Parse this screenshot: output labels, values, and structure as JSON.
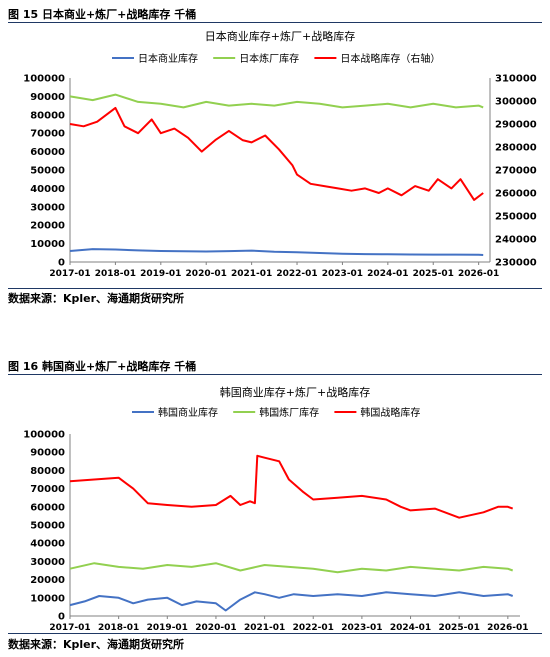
{
  "figures": [
    {
      "label": "图 15 日本商业+炼厂+战略库存 千桶",
      "source": "数据来源：Kpler、海通期货研究所"
    },
    {
      "label": "图 16 韩国商业+炼厂+战略库存 千桶",
      "source": "数据来源：Kpler、海通期货研究所"
    }
  ],
  "chart_data": [
    {
      "type": "line",
      "title": "日本商业库存+炼厂+战略库存",
      "x_ticks": [
        "2017-01",
        "2018-01",
        "2019-01",
        "2020-01",
        "2021-01",
        "2022-01",
        "2023-01",
        "2024-01",
        "2025-01",
        "2026-01"
      ],
      "ylim_left": [
        0,
        100000
      ],
      "yticks_left": [
        0,
        10000,
        20000,
        30000,
        40000,
        50000,
        60000,
        70000,
        80000,
        90000,
        100000
      ],
      "ylim_right": [
        230000,
        310000
      ],
      "yticks_right": [
        230000,
        240000,
        250000,
        260000,
        270000,
        280000,
        290000,
        300000,
        310000
      ],
      "legend_position": "top",
      "grid": false,
      "series": [
        {
          "name": "日本商业库存",
          "axis": "left",
          "color": "#4472c4",
          "x": [
            2017.0,
            2017.5,
            2018.0,
            2018.5,
            2019.0,
            2019.5,
            2020.0,
            2020.5,
            2021.0,
            2021.5,
            2022.0,
            2022.5,
            2023.0,
            2023.5,
            2024.0,
            2024.5,
            2025.0,
            2025.5,
            2026.0,
            2026.1
          ],
          "values": [
            6000,
            7000,
            6800,
            6300,
            6000,
            5800,
            5700,
            5900,
            6200,
            5600,
            5300,
            4900,
            4500,
            4300,
            4200,
            4100,
            4000,
            4000,
            3900,
            3800
          ]
        },
        {
          "name": "日本炼厂库存",
          "axis": "left",
          "color": "#92d050",
          "x": [
            2017.0,
            2017.5,
            2018.0,
            2018.5,
            2019.0,
            2019.5,
            2020.0,
            2020.5,
            2021.0,
            2021.5,
            2022.0,
            2022.5,
            2023.0,
            2023.5,
            2024.0,
            2024.5,
            2025.0,
            2025.5,
            2026.0,
            2026.1
          ],
          "values": [
            90000,
            88000,
            91000,
            87000,
            86000,
            84000,
            87000,
            85000,
            86000,
            85000,
            87000,
            86000,
            84000,
            85000,
            86000,
            84000,
            86000,
            84000,
            85000,
            84000
          ]
        },
        {
          "name": "日本战略库存（右轴）",
          "axis": "right",
          "color": "#ff0000",
          "x": [
            2017.0,
            2017.3,
            2017.6,
            2018.0,
            2018.2,
            2018.5,
            2018.8,
            2019.0,
            2019.3,
            2019.6,
            2019.9,
            2020.2,
            2020.5,
            2020.8,
            2021.0,
            2021.3,
            2021.6,
            2021.9,
            2022.0,
            2022.3,
            2022.6,
            2022.9,
            2023.2,
            2023.5,
            2023.8,
            2024.0,
            2024.3,
            2024.6,
            2024.9,
            2025.1,
            2025.4,
            2025.6,
            2025.9,
            2026.1
          ],
          "values": [
            290000,
            289000,
            291000,
            297000,
            289000,
            286000,
            292000,
            286000,
            288000,
            284000,
            278000,
            283000,
            287000,
            283000,
            282000,
            285000,
            279000,
            272000,
            268000,
            264000,
            263000,
            262000,
            261000,
            262000,
            260000,
            262000,
            259000,
            263000,
            261000,
            266000,
            262000,
            266000,
            257000,
            260000
          ]
        }
      ]
    },
    {
      "type": "line",
      "title": "韩国商业库存+炼厂+战略库存",
      "x_ticks": [
        "2017-01",
        "2018-01",
        "2019-01",
        "2020-01",
        "2021-01",
        "2022-01",
        "2023-01",
        "2024-01",
        "2025-01",
        "2026-01"
      ],
      "ylim": [
        0,
        100000
      ],
      "yticks": [
        0,
        10000,
        20000,
        30000,
        40000,
        50000,
        60000,
        70000,
        80000,
        90000,
        100000
      ],
      "legend_position": "top",
      "grid": false,
      "series": [
        {
          "name": "韩国商业库存",
          "color": "#4472c4",
          "x": [
            2017.0,
            2017.3,
            2017.6,
            2018.0,
            2018.3,
            2018.6,
            2019.0,
            2019.3,
            2019.6,
            2020.0,
            2020.2,
            2020.5,
            2020.8,
            2021.0,
            2021.3,
            2021.6,
            2022.0,
            2022.5,
            2023.0,
            2023.5,
            2024.0,
            2024.5,
            2025.0,
            2025.5,
            2026.0,
            2026.1
          ],
          "values": [
            6000,
            8000,
            11000,
            10000,
            7000,
            9000,
            10000,
            6000,
            8000,
            7000,
            3000,
            9000,
            13000,
            12000,
            10000,
            12000,
            11000,
            12000,
            11000,
            13000,
            12000,
            11000,
            13000,
            11000,
            12000,
            11000
          ]
        },
        {
          "name": "韩国炼厂库存",
          "color": "#92d050",
          "x": [
            2017.0,
            2017.5,
            2018.0,
            2018.5,
            2019.0,
            2019.5,
            2020.0,
            2020.5,
            2021.0,
            2021.5,
            2022.0,
            2022.5,
            2023.0,
            2023.5,
            2024.0,
            2024.5,
            2025.0,
            2025.5,
            2026.0,
            2026.1
          ],
          "values": [
            26000,
            29000,
            27000,
            26000,
            28000,
            27000,
            29000,
            25000,
            28000,
            27000,
            26000,
            24000,
            26000,
            25000,
            27000,
            26000,
            25000,
            27000,
            26000,
            25000
          ]
        },
        {
          "name": "韩国战略库存",
          "color": "#ff0000",
          "x": [
            2017.0,
            2017.5,
            2018.0,
            2018.3,
            2018.6,
            2019.0,
            2019.5,
            2020.0,
            2020.3,
            2020.5,
            2020.7,
            2020.8,
            2020.85,
            2021.0,
            2021.3,
            2021.5,
            2021.8,
            2022.0,
            2022.5,
            2023.0,
            2023.5,
            2023.8,
            2024.0,
            2024.5,
            2025.0,
            2025.5,
            2025.8,
            2026.0,
            2026.1
          ],
          "values": [
            74000,
            75000,
            76000,
            70000,
            62000,
            61000,
            60000,
            61000,
            66000,
            61000,
            63000,
            62000,
            88000,
            87000,
            85000,
            75000,
            68000,
            64000,
            65000,
            66000,
            64000,
            60000,
            58000,
            59000,
            54000,
            57000,
            60000,
            60000,
            59000
          ]
        }
      ]
    }
  ]
}
